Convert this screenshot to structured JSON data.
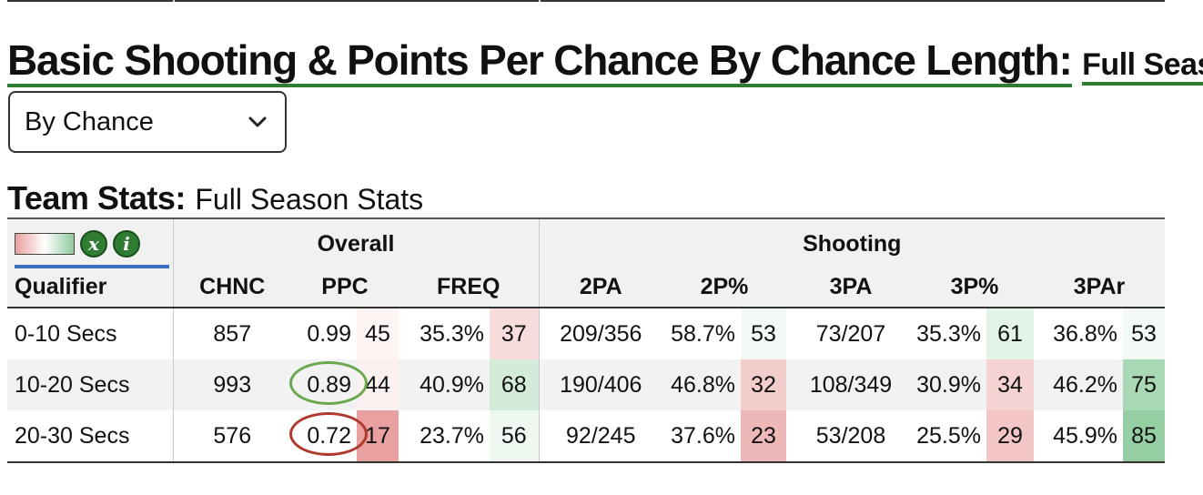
{
  "page": {
    "main_title": "Basic Shooting & Points Per Chance By Chance Length:",
    "main_title_suffix": "Full Seas"
  },
  "view_select": {
    "value": "By Chance"
  },
  "team_stats": {
    "title": "Team Stats:",
    "subtitle": "Full Season Stats"
  },
  "legend": {
    "x_button_label": "x",
    "i_button_label": "i"
  },
  "table": {
    "groups": [
      {
        "label": "Overall"
      },
      {
        "label": "Shooting"
      }
    ],
    "columns": {
      "qualifier": "Qualifier",
      "chnc": "CHNC",
      "ppc": "PPC",
      "freq": "FREQ",
      "twopa": "2PA",
      "twopct": "2P%",
      "threepa": "3PA",
      "threepct": "3P%",
      "threepar": "3PAr"
    },
    "rows": [
      {
        "qualifier": "0-10 Secs",
        "chnc": "857",
        "ppc": "0.99",
        "ppc_rank": "45",
        "freq": "35.3%",
        "freq_rank": "37",
        "twopa": "209/356",
        "twopct": "58.7%",
        "twopct_rank": "53",
        "threepa": "73/207",
        "threepct": "35.3%",
        "threepct_rank": "61",
        "threepar": "36.8%",
        "threepar_rank": "53"
      },
      {
        "qualifier": "10-20 Secs",
        "chnc": "993",
        "ppc": "0.89",
        "ppc_rank": "44",
        "freq": "40.9%",
        "freq_rank": "68",
        "twopa": "190/406",
        "twopct": "46.8%",
        "twopct_rank": "32",
        "threepa": "108/349",
        "threepct": "30.9%",
        "threepct_rank": "34",
        "threepar": "46.2%",
        "threepar_rank": "75"
      },
      {
        "qualifier": "20-30 Secs",
        "chnc": "576",
        "ppc": "0.72",
        "ppc_rank": "17",
        "freq": "23.7%",
        "freq_rank": "56",
        "twopa": "92/245",
        "twopct": "37.6%",
        "twopct_rank": "23",
        "threepa": "53/208",
        "threepct": "25.5%",
        "threepct_rank": "29",
        "threepar": "45.9%",
        "threepar_rank": "85"
      }
    ]
  },
  "colors": {
    "accent_green": "#2e7d32",
    "accent_blue": "#3b6fc2",
    "annotation_green": "#6aa84f",
    "annotation_red": "#b03a2e",
    "rank_cells": {
      "0-45": "#fdf4f4",
      "0-37": "#f8dcdc",
      "0-53": "#f3faf5",
      "0-61": "#e3f3e7",
      "1-44": "#fbf0f0",
      "1-68": "#d3ecd9",
      "1-32": "#f3cccc",
      "1-34": "#f5d3d3",
      "1-75": "#a9d9b4",
      "2-17": "#e8a0a0",
      "2-56": "#eef8f1",
      "2-23": "#eeb8b8",
      "2-29": "#f2c6c6",
      "2-85": "#94cea2"
    }
  }
}
